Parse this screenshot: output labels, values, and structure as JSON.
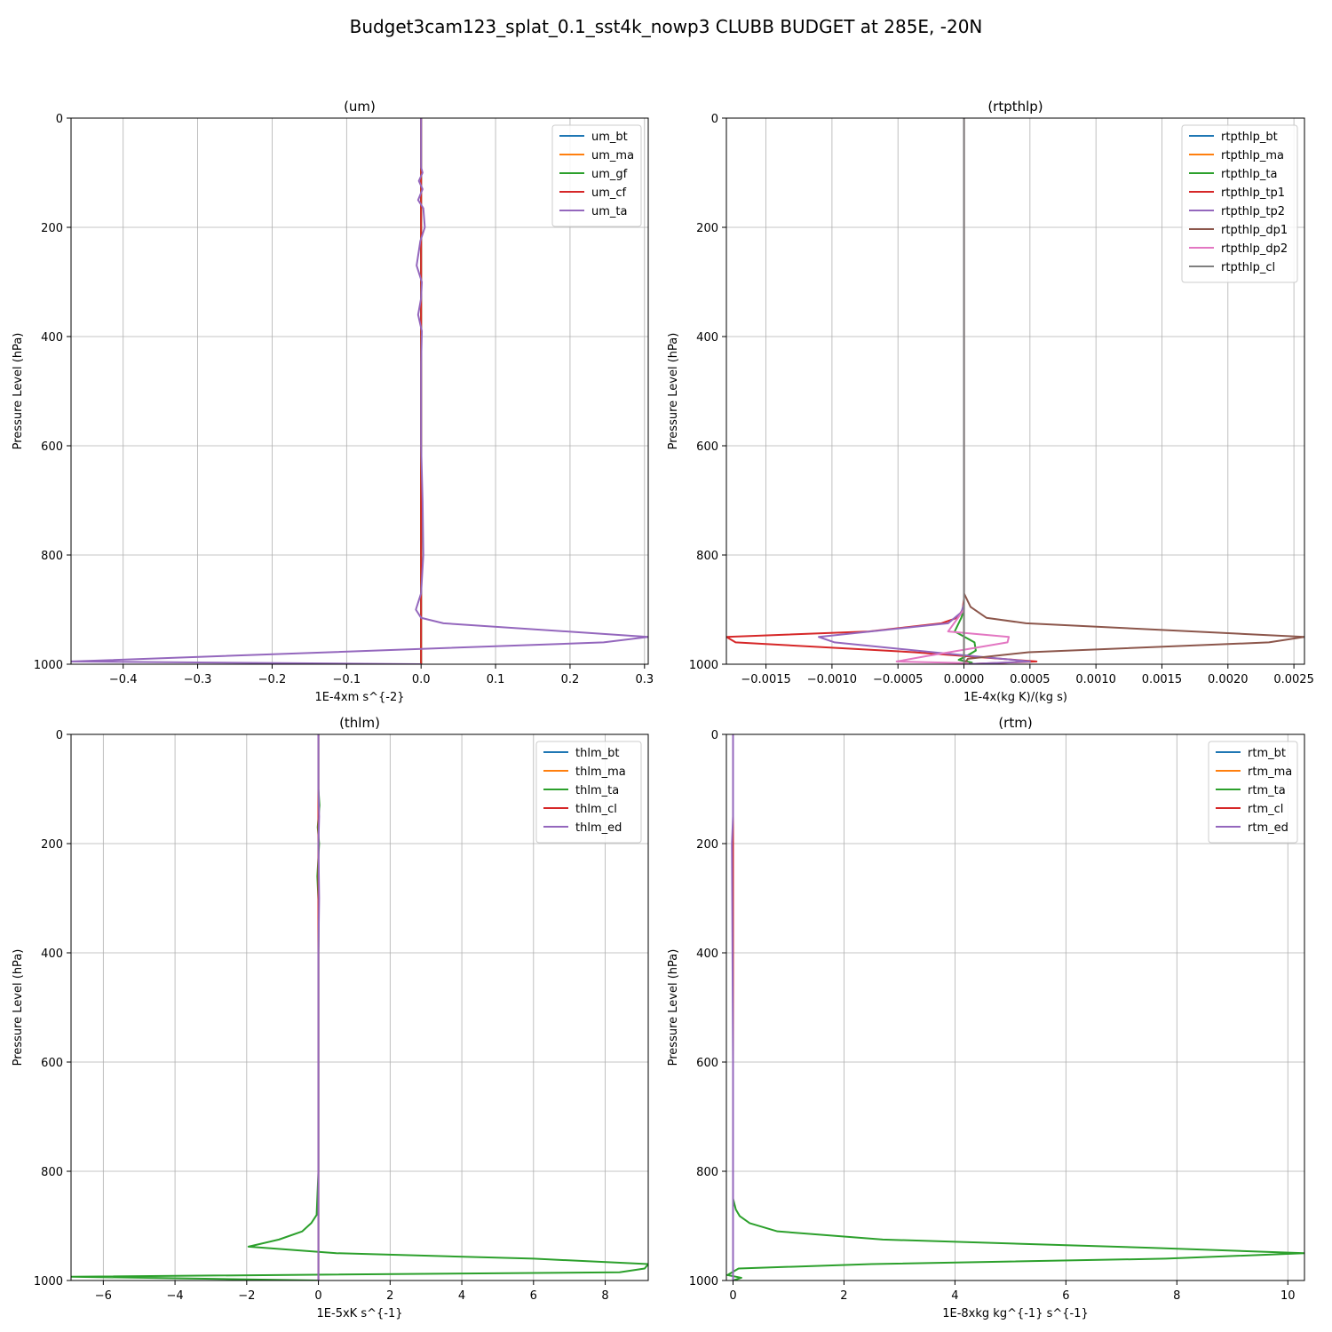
{
  "suptitle": "Budget3cam123_splat_0.1_sst4k_nowp3 CLUBB BUDGET at 285E, -20N",
  "chart_data": [
    {
      "type": "line",
      "title": "(um)",
      "xlabel": "1E-4xm s^{-2}",
      "ylabel": "Pressure Level (hPa)",
      "xlim": [
        -0.47,
        0.305
      ],
      "ylim": [
        1000,
        0
      ],
      "xticks": [
        -0.4,
        -0.3,
        -0.2,
        -0.1,
        0.0,
        0.1,
        0.2,
        0.3
      ],
      "xtick_labels": [
        "−0.4",
        "−0.3",
        "−0.2",
        "−0.1",
        "0.0",
        "0.1",
        "0.2",
        "0.3"
      ],
      "yticks": [
        0,
        200,
        400,
        600,
        800,
        1000
      ],
      "grid": true,
      "legend": "top-right",
      "series": [
        {
          "name": "um_bt",
          "color": "#1f77b4",
          "x": [
            0,
            0,
            0,
            0,
            0,
            0,
            0
          ],
          "y": [
            0,
            200,
            400,
            600,
            800,
            950,
            1000
          ]
        },
        {
          "name": "um_ma",
          "color": "#ff7f0e",
          "x": [
            0,
            0,
            0,
            0,
            0,
            0,
            0
          ],
          "y": [
            0,
            200,
            400,
            600,
            800,
            950,
            1000
          ]
        },
        {
          "name": "um_gf",
          "color": "#2ca02c",
          "x": [
            0,
            0,
            0,
            0,
            0,
            0,
            0
          ],
          "y": [
            0,
            200,
            400,
            600,
            800,
            950,
            1000
          ]
        },
        {
          "name": "um_cf",
          "color": "#d62728",
          "x": [
            0,
            0,
            0,
            0,
            0,
            0,
            0
          ],
          "y": [
            0,
            200,
            400,
            600,
            800,
            950,
            1000
          ]
        },
        {
          "name": "um_ta",
          "color": "#9467bd",
          "x": [
            0,
            0,
            0.002,
            -0.003,
            0.002,
            -0.004,
            0.003,
            0.005,
            -0.001,
            -0.006,
            0.001,
            0,
            -0.004,
            0.001,
            0,
            0,
            0.002,
            0.003,
            0,
            -0.007,
            0,
            0.03,
            0.305,
            0.245,
            -0.47,
            0
          ],
          "y": [
            0,
            90,
            100,
            115,
            130,
            150,
            165,
            200,
            225,
            270,
            300,
            330,
            360,
            390,
            450,
            600,
            700,
            800,
            870,
            900,
            915,
            925,
            950,
            960,
            995,
            1000
          ]
        }
      ]
    },
    {
      "type": "line",
      "title": "(rtpthlp)",
      "xlabel": "1E-4x(kg K)/(kg s)",
      "ylabel": "Pressure Level (hPa)",
      "xlim": [
        -0.0018,
        0.00258
      ],
      "ylim": [
        1000,
        0
      ],
      "xticks": [
        -0.0015,
        -0.001,
        -0.0005,
        0.0,
        0.0005,
        0.001,
        0.0015,
        0.002,
        0.0025
      ],
      "xtick_labels": [
        "−0.0015",
        "−0.0010",
        "−0.0005",
        "0.0000",
        "0.0005",
        "0.0010",
        "0.0015",
        "0.0020",
        "0.0025"
      ],
      "yticks": [
        0,
        200,
        400,
        600,
        800,
        1000
      ],
      "grid": true,
      "legend": "top-right",
      "series": [
        {
          "name": "rtpthlp_bt",
          "color": "#1f77b4",
          "x": [
            0,
            0,
            0
          ],
          "y": [
            0,
            500,
            1000
          ]
        },
        {
          "name": "rtpthlp_ma",
          "color": "#ff7f0e",
          "x": [
            0,
            0,
            0
          ],
          "y": [
            0,
            500,
            1000
          ]
        },
        {
          "name": "rtpthlp_ta",
          "color": "#2ca02c",
          "x": [
            0,
            0,
            0,
            -2e-05,
            -7e-05,
            8e-05,
            9e-05,
            2e-05,
            -4e-05,
            6e-05,
            0
          ],
          "y": [
            0,
            870,
            900,
            915,
            940,
            960,
            975,
            985,
            992,
            997,
            1000
          ]
        },
        {
          "name": "rtpthlp_tp1",
          "color": "#d62728",
          "x": [
            0,
            0,
            -1e-05,
            -5e-05,
            -0.00017,
            -0.00072,
            -0.0018,
            -0.00173,
            -0.00038,
            0.00055,
            0
          ],
          "y": [
            0,
            880,
            900,
            915,
            925,
            940,
            950,
            960,
            978,
            995,
            1000
          ]
        },
        {
          "name": "rtpthlp_tp2",
          "color": "#9467bd",
          "x": [
            0,
            0,
            -2e-05,
            -0.00012,
            -0.0011,
            -0.00098,
            -0.00015,
            0.0005,
            0
          ],
          "y": [
            0,
            890,
            905,
            925,
            950,
            960,
            980,
            995,
            1000
          ]
        },
        {
          "name": "rtpthlp_dp1",
          "color": "#8c564b",
          "x": [
            0,
            0,
            5e-05,
            0.00017,
            0.00047,
            0.00258,
            0.00231,
            0.00049,
            3e-05,
            0
          ],
          "y": [
            0,
            870,
            895,
            915,
            925,
            950,
            960,
            978,
            990,
            1000
          ]
        },
        {
          "name": "rtpthlp_dp2",
          "color": "#e377c2",
          "x": [
            0,
            0,
            -0.00012,
            0.00034,
            0.00033,
            -0.00028,
            -0.00051,
            3e-05,
            0
          ],
          "y": [
            0,
            900,
            940,
            950,
            960,
            985,
            995,
            998,
            1000
          ]
        },
        {
          "name": "rtpthlp_cl",
          "color": "#7f7f7f",
          "x": [
            0,
            0,
            0
          ],
          "y": [
            0,
            500,
            1000
          ]
        }
      ]
    },
    {
      "type": "line",
      "title": "(thlm)",
      "xlabel": "1E-5xK s^{-1}",
      "ylabel": "Pressure Level (hPa)",
      "xlim": [
        -6.9,
        9.2
      ],
      "ylim": [
        1000,
        0
      ],
      "xticks": [
        -6,
        -4,
        -2,
        0,
        2,
        4,
        6,
        8
      ],
      "xtick_labels": [
        "−6",
        "−4",
        "−2",
        "0",
        "2",
        "4",
        "6",
        "8"
      ],
      "yticks": [
        0,
        200,
        400,
        600,
        800,
        1000
      ],
      "grid": true,
      "legend": "top-right",
      "series": [
        {
          "name": "thlm_bt",
          "color": "#1f77b4",
          "x": [
            0,
            0,
            0
          ],
          "y": [
            0,
            500,
            1000
          ]
        },
        {
          "name": "thlm_ma",
          "color": "#ff7f0e",
          "x": [
            0,
            0,
            0
          ],
          "y": [
            0,
            500,
            1000
          ]
        },
        {
          "name": "thlm_ta",
          "color": "#2ca02c",
          "x": [
            0,
            0,
            0.03,
            -0.02,
            0.02,
            -0.03,
            0.01,
            0,
            0,
            0,
            -0.05,
            -0.2,
            -0.45,
            -1.1,
            -1.95,
            0.5,
            6.0,
            9.2,
            9.1,
            8.4,
            -6.9,
            0
          ],
          "y": [
            0,
            100,
            130,
            170,
            200,
            260,
            320,
            400,
            600,
            800,
            880,
            895,
            910,
            925,
            938,
            950,
            960,
            970,
            978,
            985,
            993,
            1000
          ]
        },
        {
          "name": "thlm_cl",
          "color": "#d62728",
          "x": [
            0,
            0,
            0
          ],
          "y": [
            0,
            500,
            1000
          ]
        },
        {
          "name": "thlm_ed",
          "color": "#9467bd",
          "x": [
            0,
            0,
            0.02,
            0,
            0.02,
            0,
            0,
            0
          ],
          "y": [
            0,
            100,
            150,
            200,
            300,
            400,
            700,
            1000
          ]
        }
      ]
    },
    {
      "type": "line",
      "title": "(rtm)",
      "xlabel": "1E-8xkg kg^{-1} s^{-1}",
      "ylabel": "Pressure Level (hPa)",
      "xlim": [
        -0.12,
        10.3
      ],
      "ylim": [
        1000,
        0
      ],
      "xticks": [
        0,
        2,
        4,
        6,
        8,
        10
      ],
      "xtick_labels": [
        "0",
        "2",
        "4",
        "6",
        "8",
        "10"
      ],
      "yticks": [
        0,
        200,
        400,
        600,
        800,
        1000
      ],
      "grid": true,
      "legend": "top-right",
      "series": [
        {
          "name": "rtm_bt",
          "color": "#1f77b4",
          "x": [
            0,
            0,
            0
          ],
          "y": [
            0,
            500,
            1000
          ]
        },
        {
          "name": "rtm_ma",
          "color": "#ff7f0e",
          "x": [
            0,
            0,
            0
          ],
          "y": [
            0,
            500,
            1000
          ]
        },
        {
          "name": "rtm_ta",
          "color": "#2ca02c",
          "x": [
            0,
            0,
            0.05,
            0.12,
            0.3,
            0.8,
            2.7,
            7.5,
            10.3,
            7.8,
            2.5,
            0.1,
            -0.1,
            0.15,
            0
          ],
          "y": [
            0,
            850,
            870,
            882,
            895,
            910,
            925,
            940,
            950,
            960,
            970,
            978,
            990,
            995,
            1000
          ]
        },
        {
          "name": "rtm_cl",
          "color": "#d62728",
          "x": [
            0,
            0,
            0
          ],
          "y": [
            0,
            500,
            1000
          ]
        },
        {
          "name": "rtm_ed",
          "color": "#9467bd",
          "x": [
            0,
            0,
            -0.02,
            0,
            0
          ],
          "y": [
            0,
            150,
            200,
            600,
            1000
          ]
        }
      ]
    }
  ]
}
